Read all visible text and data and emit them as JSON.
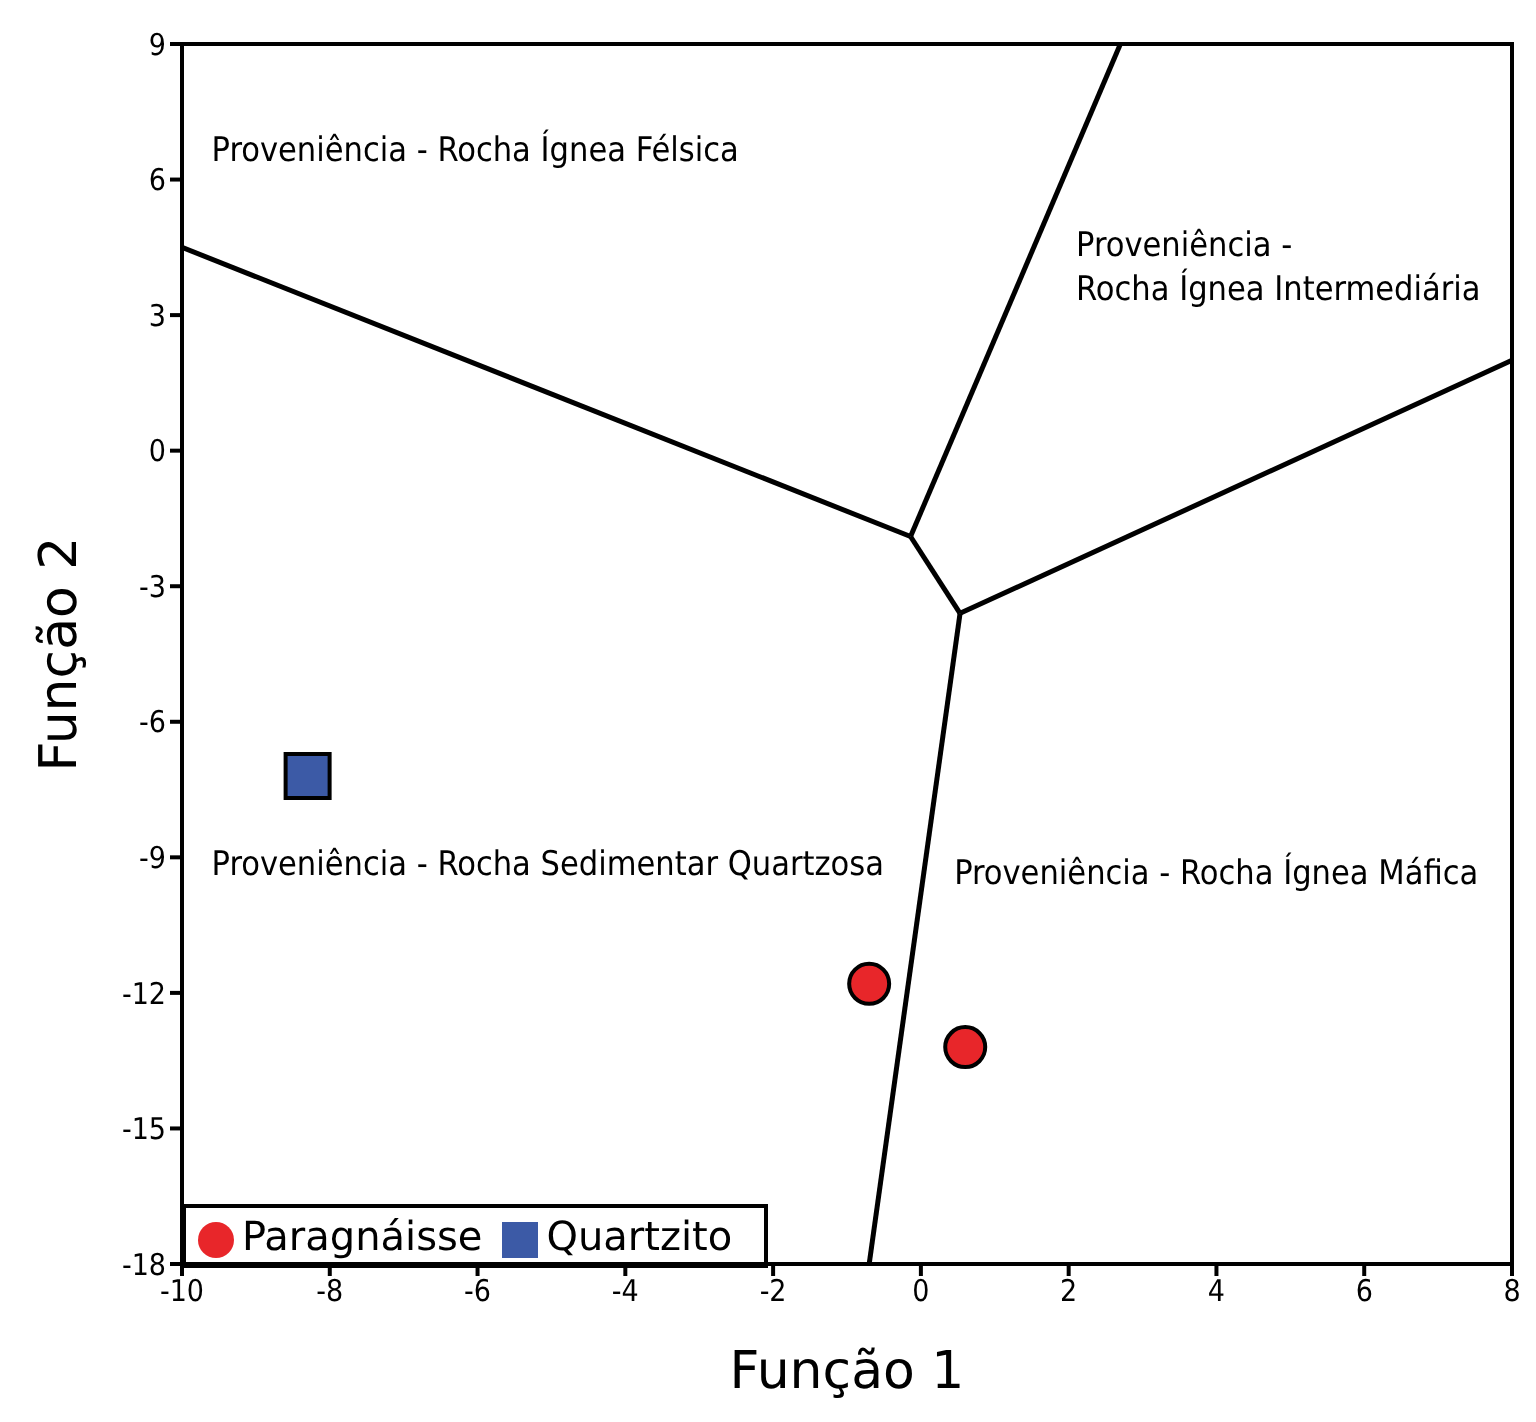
{
  "chart_data": {
    "type": "scatter",
    "xlabel": "Função 1",
    "ylabel": "Função 2",
    "xlim": [
      -10,
      8
    ],
    "xticks": [
      -10,
      -8,
      -6,
      -4,
      -2,
      0,
      2,
      4,
      6,
      8
    ],
    "ylim": [
      -18,
      9
    ],
    "yticks": [
      -18,
      -15,
      -12,
      -9,
      -6,
      -3,
      0,
      3,
      6,
      9
    ],
    "grid": false,
    "legend": "bottom left",
    "series": [
      {
        "type": "line",
        "color": "#000000",
        "marker": "none",
        "x": [
          -10,
          -0.14
        ],
        "values": [
          4.5,
          -1.9
        ]
      },
      {
        "type": "line",
        "color": "#000000",
        "marker": "none",
        "x": [
          -0.14,
          2.7
        ],
        "values": [
          -1.9,
          9
        ]
      },
      {
        "type": "line",
        "color": "#000000",
        "marker": "none",
        "x": [
          -0.14,
          0.53
        ],
        "values": [
          -1.9,
          -3.6
        ]
      },
      {
        "type": "line",
        "color": "#000000",
        "marker": "none",
        "x": [
          0.53,
          8
        ],
        "values": [
          -3.6,
          2.0
        ]
      },
      {
        "type": "line",
        "color": "#000000",
        "marker": "none",
        "x": [
          0.53,
          -0.7
        ],
        "values": [
          -3.6,
          -18
        ]
      },
      {
        "name": "Paragnáisse",
        "color": "#e8262a",
        "marker": "circle",
        "x": [
          -0.7,
          0.6
        ],
        "values": [
          -11.8,
          -13.2
        ]
      },
      {
        "name": "Quartzito",
        "color": "#3c5aa6",
        "marker": "square",
        "x": [
          -8.3
        ],
        "values": [
          -7.2
        ]
      }
    ],
    "annotations": [
      "Proveniência - Rocha Ígnea Félsica",
      "Proveniência -\nRocha Ígnea Intermediária",
      "Proveniência - Rocha Sedimentar Quartzosa",
      "Proveniência - Rocha Ígnea Máfica"
    ]
  }
}
